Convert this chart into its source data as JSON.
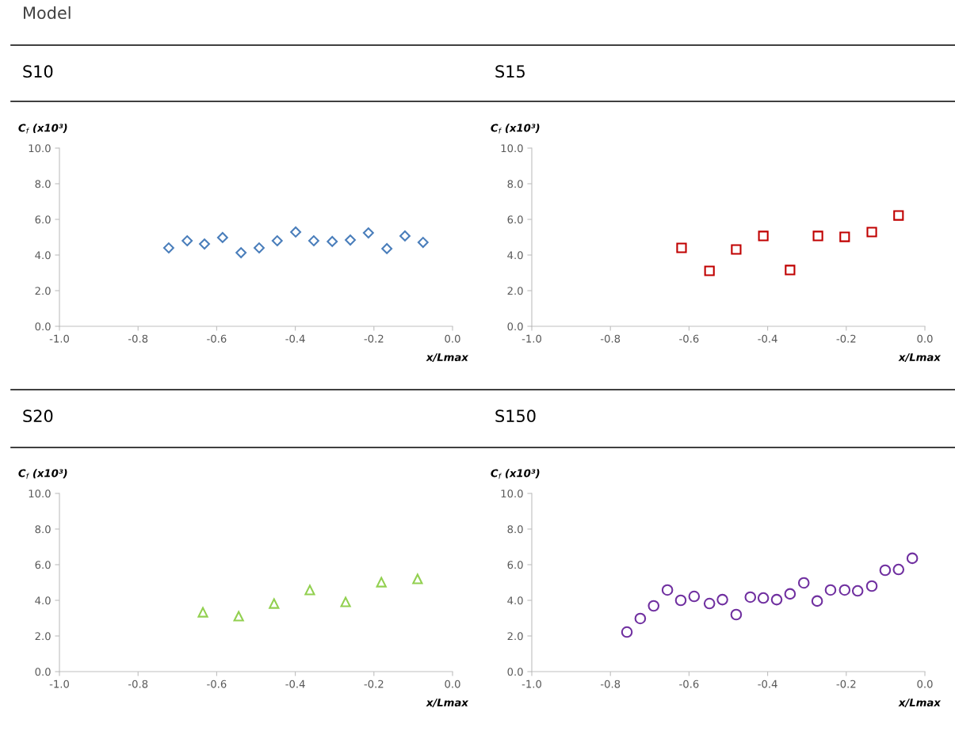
{
  "chart_data": [
    {
      "type": "scatter",
      "title": "S10",
      "annotations": [
        "Model"
      ],
      "ylabel": "C$_{f}$ (x10³)",
      "xlabel": "x/Lmax",
      "marker": "diamond",
      "grid": false,
      "xlim": [
        -1.0,
        0.0
      ],
      "ylim": [
        0.0,
        10.0
      ],
      "xticks": [
        {
          "value": -1.0,
          "label": "-1.0"
        },
        {
          "value": -0.8,
          "label": "-0.8"
        },
        {
          "value": -0.6,
          "label": "-0.6"
        },
        {
          "value": -0.4,
          "label": "-0.4"
        },
        {
          "value": -0.2,
          "label": "-0.2"
        },
        {
          "value": 0.0,
          "label": "0.0"
        }
      ],
      "yticks": [
        {
          "value": 0,
          "label": "0.0"
        },
        {
          "value": 2,
          "label": "2.0"
        },
        {
          "value": 4,
          "label": "4.0"
        },
        {
          "value": 6,
          "label": "6.0"
        },
        {
          "value": 8,
          "label": "8.0"
        },
        {
          "value": 10,
          "label": "10.0"
        }
      ],
      "series": [
        {
          "color": "#4a7ebb",
          "x": [
            -0.722,
            -0.675,
            -0.631,
            -0.585,
            -0.538,
            -0.492,
            -0.446,
            -0.399,
            -0.353,
            -0.306,
            -0.26,
            -0.214,
            -0.167,
            -0.121,
            -0.075
          ],
          "values": [
            4.4,
            4.8,
            4.62,
            4.98,
            4.13,
            4.4,
            4.8,
            5.29,
            4.8,
            4.76,
            4.84,
            5.24,
            4.36,
            5.07,
            4.71
          ]
        }
      ]
    },
    {
      "type": "scatter",
      "title": "S15",
      "ylabel": "C$_{f}$ (x10³)",
      "xlabel": "x/Lmax",
      "marker": "square",
      "grid": false,
      "xlim": [
        -1.0,
        0.0
      ],
      "ylim": [
        0.0,
        10.0
      ],
      "xticks": [
        {
          "value": -1.0,
          "label": "-1.0"
        },
        {
          "value": -0.8,
          "label": "-0.8"
        },
        {
          "value": -0.6,
          "label": "-0.6"
        },
        {
          "value": -0.4,
          "label": "-0.4"
        },
        {
          "value": -0.2,
          "label": "-0.2"
        },
        {
          "value": 0.0,
          "label": "0.0"
        }
      ],
      "yticks": [
        {
          "value": 0,
          "label": "0.0"
        },
        {
          "value": 2,
          "label": "2.0"
        },
        {
          "value": 4,
          "label": "4.0"
        },
        {
          "value": 6,
          "label": "6.0"
        },
        {
          "value": 8,
          "label": "8.0"
        },
        {
          "value": 10,
          "label": "10.0"
        }
      ],
      "series": [
        {
          "color": "#c00000",
          "x": [
            -0.619,
            -0.548,
            -0.48,
            -0.411,
            -0.343,
            -0.272,
            -0.204,
            -0.135,
            -0.067
          ],
          "values": [
            4.4,
            3.11,
            4.31,
            5.07,
            3.16,
            5.07,
            5.02,
            5.29,
            6.22
          ]
        }
      ]
    },
    {
      "type": "scatter",
      "title": "S20",
      "ylabel": "C$_{f}$ (x10³)",
      "xlabel": "x/Lmax",
      "marker": "triangle",
      "grid": false,
      "xlim": [
        -1.0,
        0.0
      ],
      "ylim": [
        0.0,
        10.0
      ],
      "xticks": [
        {
          "value": -1.0,
          "label": "-1.0"
        },
        {
          "value": -0.8,
          "label": "-0.8"
        },
        {
          "value": -0.6,
          "label": "-0.6"
        },
        {
          "value": -0.4,
          "label": "-0.4"
        },
        {
          "value": -0.2,
          "label": "-0.2"
        },
        {
          "value": 0.0,
          "label": "0.0"
        }
      ],
      "yticks": [
        {
          "value": 0,
          "label": "0.0"
        },
        {
          "value": 2,
          "label": "2.0"
        },
        {
          "value": 4,
          "label": "4.0"
        },
        {
          "value": 6,
          "label": "6.0"
        },
        {
          "value": 8,
          "label": "8.0"
        },
        {
          "value": 10,
          "label": "10.0"
        }
      ],
      "series": [
        {
          "color": "#92d050",
          "x": [
            -0.635,
            -0.544,
            -0.454,
            -0.363,
            -0.272,
            -0.181,
            -0.089
          ],
          "values": [
            3.33,
            3.11,
            3.82,
            4.58,
            3.91,
            5.02,
            5.2
          ]
        }
      ]
    },
    {
      "type": "scatter",
      "title": "S150",
      "ylabel": "C$_{f}$ (x10³)",
      "xlabel": "x/Lmax",
      "marker": "circle",
      "grid": false,
      "xlim": [
        -1.0,
        0.0
      ],
      "ylim": [
        0.0,
        10.0
      ],
      "xticks": [
        {
          "value": -1.0,
          "label": "-1.0"
        },
        {
          "value": -0.8,
          "label": "-0.8"
        },
        {
          "value": -0.6,
          "label": "-0.6"
        },
        {
          "value": -0.4,
          "label": "-0.4"
        },
        {
          "value": -0.2,
          "label": "-0.2"
        },
        {
          "value": 0.0,
          "label": "0.0"
        }
      ],
      "yticks": [
        {
          "value": 0,
          "label": "0.0"
        },
        {
          "value": 2,
          "label": "2.0"
        },
        {
          "value": 4,
          "label": "4.0"
        },
        {
          "value": 6,
          "label": "6.0"
        },
        {
          "value": 8,
          "label": "8.0"
        },
        {
          "value": 10,
          "label": "10.0"
        }
      ],
      "series": [
        {
          "color": "#7030a0",
          "x": [
            -0.758,
            -0.724,
            -0.69,
            -0.655,
            -0.621,
            -0.587,
            -0.548,
            -0.515,
            -0.48,
            -0.444,
            -0.411,
            -0.377,
            -0.343,
            -0.308,
            -0.274,
            -0.24,
            -0.204,
            -0.171,
            -0.135,
            -0.101,
            -0.067,
            -0.032
          ],
          "values": [
            2.22,
            2.98,
            3.69,
            4.58,
            4.0,
            4.22,
            3.82,
            4.04,
            3.2,
            4.18,
            4.13,
            4.04,
            4.36,
            4.98,
            3.96,
            4.58,
            4.58,
            4.53,
            4.8,
            5.69,
            5.73,
            6.36
          ]
        }
      ]
    }
  ]
}
